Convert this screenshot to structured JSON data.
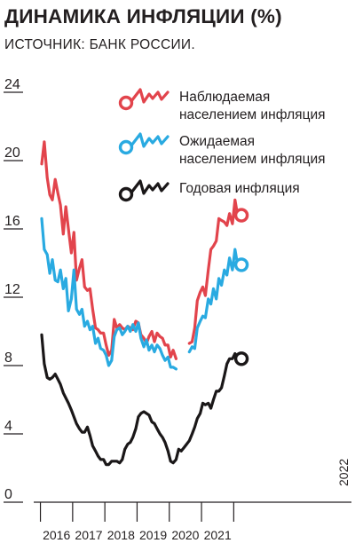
{
  "title": "ДИНАМИКА ИНФЛЯЦИИ (%)",
  "subtitle": "ИСТОЧНИК: БАНК РОССИИ.",
  "colors": {
    "observed": "#e2444c",
    "expected": "#29aae1",
    "annual": "#1a1718",
    "axis": "#231f20"
  },
  "chart_data": {
    "type": "line",
    "title": "ДИНАМИКА ИНФЛЯЦИИ (%)",
    "xlabel": "",
    "ylabel": "",
    "ylim": [
      0,
      24
    ],
    "yticks": [
      0,
      4,
      8,
      12,
      16,
      20,
      24
    ],
    "ytick_labels": [
      "0",
      "4",
      "8",
      "12",
      "16",
      "20",
      "24"
    ],
    "xlim": [
      2015.8,
      2022.25
    ],
    "xtick_labels": [
      "2016",
      "2017",
      "2018",
      "2019",
      "2020",
      "2021",
      "2022"
    ],
    "grid": false,
    "legend_position": "top-right",
    "series": [
      {
        "name": "Наблюдаемая населением инфляция",
        "legend_lines": [
          "Наблюдаемая",
          "населением инфляция"
        ],
        "color": "#e2444c",
        "points": [
          [
            2016.0,
            19.8
          ],
          [
            2016.08,
            21.1
          ],
          [
            2016.17,
            19.0
          ],
          [
            2016.25,
            18.0
          ],
          [
            2016.33,
            17.7
          ],
          [
            2016.42,
            18.9
          ],
          [
            2016.5,
            18.1
          ],
          [
            2016.58,
            17.4
          ],
          [
            2016.67,
            15.7
          ],
          [
            2016.75,
            17.3
          ],
          [
            2016.83,
            16.0
          ],
          [
            2016.92,
            14.6
          ],
          [
            2017.0,
            15.8
          ],
          [
            2017.08,
            13.0
          ],
          [
            2017.17,
            13.7
          ],
          [
            2017.25,
            14.2
          ],
          [
            2017.33,
            12.6
          ],
          [
            2017.42,
            12.4
          ],
          [
            2017.5,
            12.5
          ],
          [
            2017.58,
            11.3
          ],
          [
            2017.67,
            10.2
          ],
          [
            2017.75,
            10.1
          ],
          [
            2017.83,
            9.9
          ],
          [
            2017.92,
            9.9
          ],
          [
            2018.0,
            9.2
          ],
          [
            2018.08,
            8.6
          ],
          [
            2018.17,
            8.9
          ],
          [
            2018.25,
            10.7
          ],
          [
            2018.33,
            10.2
          ],
          [
            2018.42,
            10.4
          ],
          [
            2018.5,
            10.2
          ],
          [
            2018.58,
            10.1
          ],
          [
            2018.67,
            10.3
          ],
          [
            2018.75,
            10.2
          ],
          [
            2018.83,
            10.1
          ],
          [
            2018.92,
            10.6
          ],
          [
            2019.0,
            10.5
          ],
          [
            2019.08,
            9.8
          ],
          [
            2019.17,
            9.6
          ],
          [
            2019.25,
            9.3
          ],
          [
            2019.33,
            9.7
          ],
          [
            2019.42,
            10.0
          ],
          [
            2019.5,
            9.4
          ],
          [
            2019.58,
            9.9
          ],
          [
            2019.67,
            9.7
          ],
          [
            2019.75,
            9.6
          ],
          [
            2019.83,
            9.2
          ],
          [
            2019.92,
            9.2
          ],
          [
            2020.0,
            8.5
          ],
          [
            2020.08,
            8.9
          ],
          [
            2020.17,
            8.4
          ],
          null,
          [
            2020.58,
            9.3
          ],
          [
            2020.67,
            9.4
          ],
          [
            2020.75,
            10.2
          ],
          [
            2020.83,
            11.8
          ],
          [
            2020.92,
            12.3
          ],
          [
            2021.0,
            12.6
          ],
          [
            2021.08,
            12.1
          ],
          [
            2021.17,
            13.6
          ],
          [
            2021.25,
            14.8
          ],
          [
            2021.33,
            15.0
          ],
          [
            2021.42,
            15.3
          ],
          [
            2021.5,
            16.6
          ],
          [
            2021.58,
            16.5
          ],
          [
            2021.67,
            16.4
          ],
          [
            2021.75,
            16.2
          ],
          [
            2021.83,
            16.9
          ],
          [
            2021.92,
            16.3
          ],
          [
            2022.0,
            17.7
          ],
          [
            2022.08,
            16.8
          ]
        ]
      },
      {
        "name": "Ожидаемая населением инфляция",
        "legend_lines": [
          "Ожидаемая",
          "населением инфляция"
        ],
        "color": "#29aae1",
        "points": [
          [
            2016.0,
            16.6
          ],
          [
            2016.08,
            14.8
          ],
          [
            2016.17,
            14.5
          ],
          [
            2016.25,
            13.4
          ],
          [
            2016.33,
            14.2
          ],
          [
            2016.42,
            13.0
          ],
          [
            2016.5,
            12.9
          ],
          [
            2016.58,
            13.6
          ],
          [
            2016.67,
            12.5
          ],
          [
            2016.75,
            13.1
          ],
          [
            2016.83,
            11.2
          ],
          [
            2016.92,
            11.9
          ],
          [
            2017.0,
            13.6
          ],
          [
            2017.08,
            11.3
          ],
          [
            2017.17,
            11.0
          ],
          [
            2017.25,
            11.3
          ],
          [
            2017.33,
            10.3
          ],
          [
            2017.42,
            10.6
          ],
          [
            2017.5,
            10.1
          ],
          [
            2017.58,
            10.3
          ],
          [
            2017.67,
            9.3
          ],
          [
            2017.75,
            9.6
          ],
          [
            2017.83,
            9.0
          ],
          [
            2017.92,
            8.9
          ],
          [
            2018.0,
            8.6
          ],
          [
            2018.08,
            8.0
          ],
          [
            2018.17,
            8.3
          ],
          [
            2018.25,
            9.7
          ],
          [
            2018.33,
            10.1
          ],
          [
            2018.42,
            10.2
          ],
          [
            2018.5,
            9.8
          ],
          [
            2018.58,
            10.0
          ],
          [
            2018.67,
            10.3
          ],
          [
            2018.75,
            10.0
          ],
          [
            2018.83,
            10.4
          ],
          [
            2018.92,
            10.0
          ],
          [
            2019.0,
            10.5
          ],
          [
            2019.08,
            9.6
          ],
          [
            2019.17,
            9.1
          ],
          [
            2019.25,
            9.5
          ],
          [
            2019.33,
            8.9
          ],
          [
            2019.42,
            9.2
          ],
          [
            2019.5,
            8.8
          ],
          [
            2019.58,
            9.2
          ],
          [
            2019.67,
            9.0
          ],
          [
            2019.75,
            8.6
          ],
          [
            2019.83,
            8.3
          ],
          [
            2019.92,
            8.5
          ],
          [
            2020.0,
            7.9
          ],
          [
            2020.08,
            7.9
          ],
          [
            2020.17,
            7.8
          ],
          null,
          [
            2020.58,
            8.8
          ],
          [
            2020.67,
            9.1
          ],
          [
            2020.75,
            9.0
          ],
          [
            2020.83,
            10.2
          ],
          [
            2020.92,
            10.6
          ],
          [
            2021.0,
            10.9
          ],
          [
            2021.08,
            10.8
          ],
          [
            2021.17,
            11.9
          ],
          [
            2021.25,
            11.6
          ],
          [
            2021.33,
            12.5
          ],
          [
            2021.42,
            11.9
          ],
          [
            2021.5,
            13.1
          ],
          [
            2021.58,
            12.7
          ],
          [
            2021.67,
            13.6
          ],
          [
            2021.75,
            13.3
          ],
          [
            2021.83,
            14.3
          ],
          [
            2021.92,
            13.6
          ],
          [
            2022.0,
            14.8
          ],
          [
            2022.08,
            13.9
          ]
        ]
      },
      {
        "name": "Годовая инфляция",
        "legend_lines": [
          "Годовая инфляция"
        ],
        "color": "#1a1718",
        "points": [
          [
            2016.0,
            9.8
          ],
          [
            2016.08,
            8.1
          ],
          [
            2016.17,
            7.3
          ],
          [
            2016.25,
            7.2
          ],
          [
            2016.33,
            7.3
          ],
          [
            2016.42,
            7.5
          ],
          [
            2016.5,
            7.2
          ],
          [
            2016.58,
            6.9
          ],
          [
            2016.67,
            6.4
          ],
          [
            2016.75,
            6.1
          ],
          [
            2016.83,
            5.8
          ],
          [
            2016.92,
            5.4
          ],
          [
            2017.0,
            5.0
          ],
          [
            2017.08,
            4.6
          ],
          [
            2017.17,
            4.3
          ],
          [
            2017.25,
            4.1
          ],
          [
            2017.33,
            4.1
          ],
          [
            2017.42,
            4.4
          ],
          [
            2017.5,
            3.9
          ],
          [
            2017.58,
            3.3
          ],
          [
            2017.67,
            3.0
          ],
          [
            2017.75,
            2.7
          ],
          [
            2017.83,
            2.5
          ],
          [
            2017.92,
            2.5
          ],
          [
            2018.0,
            2.2
          ],
          [
            2018.08,
            2.2
          ],
          [
            2018.17,
            2.4
          ],
          [
            2018.25,
            2.4
          ],
          [
            2018.33,
            2.4
          ],
          [
            2018.42,
            2.3
          ],
          [
            2018.5,
            2.5
          ],
          [
            2018.58,
            3.1
          ],
          [
            2018.67,
            3.4
          ],
          [
            2018.75,
            3.5
          ],
          [
            2018.83,
            3.8
          ],
          [
            2018.92,
            4.3
          ],
          [
            2019.0,
            5.0
          ],
          [
            2019.08,
            5.2
          ],
          [
            2019.17,
            5.3
          ],
          [
            2019.25,
            5.2
          ],
          [
            2019.33,
            5.1
          ],
          [
            2019.42,
            4.7
          ],
          [
            2019.5,
            4.6
          ],
          [
            2019.58,
            4.3
          ],
          [
            2019.67,
            4.0
          ],
          [
            2019.75,
            3.8
          ],
          [
            2019.83,
            3.5
          ],
          [
            2019.92,
            3.0
          ],
          [
            2020.0,
            2.4
          ],
          [
            2020.08,
            2.3
          ],
          [
            2020.17,
            2.5
          ],
          [
            2020.25,
            3.1
          ],
          [
            2020.33,
            3.0
          ],
          [
            2020.42,
            3.2
          ],
          [
            2020.5,
            3.4
          ],
          [
            2020.58,
            3.6
          ],
          [
            2020.67,
            4.0
          ],
          [
            2020.75,
            4.4
          ],
          [
            2020.83,
            4.9
          ],
          [
            2020.92,
            5.2
          ],
          [
            2021.0,
            5.8
          ],
          [
            2021.08,
            5.7
          ],
          [
            2021.17,
            5.8
          ],
          [
            2021.25,
            5.5
          ],
          [
            2021.33,
            6.0
          ],
          [
            2021.42,
            6.5
          ],
          [
            2021.5,
            6.5
          ],
          [
            2021.58,
            6.7
          ],
          [
            2021.67,
            7.4
          ],
          [
            2021.75,
            8.1
          ],
          [
            2021.83,
            8.4
          ],
          [
            2021.92,
            8.4
          ],
          [
            2022.0,
            8.7
          ],
          [
            2022.08,
            8.4
          ]
        ]
      }
    ]
  }
}
